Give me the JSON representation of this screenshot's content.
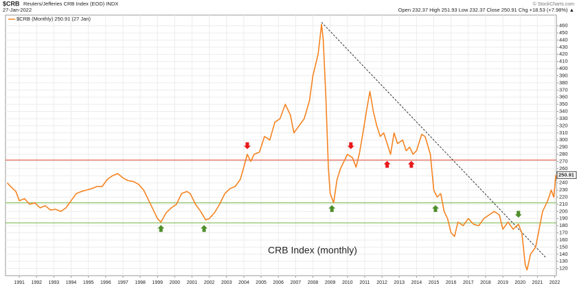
{
  "chart_data": {
    "type": "line",
    "symbol": "$CRB",
    "title": "Reuters/Jefferies CRB Index (EOD) INDX",
    "date": "27-Jan-2022",
    "stats": "Open 232.37  High 251.93  Low 232.37  Close 250.91  Chg +18.53 (+7.98%) ▲",
    "watermark": "© StockCharts.com",
    "annotation": "CRB Index (monthly)",
    "last_label": "250.91",
    "grid": true,
    "xlim": [
      1990.2,
      2022.1
    ],
    "ylim": [
      110,
      475
    ],
    "xticks": [
      1991,
      1992,
      1993,
      1994,
      1995,
      1996,
      1997,
      1998,
      1999,
      2000,
      2001,
      2002,
      2003,
      2004,
      2005,
      2006,
      2007,
      2008,
      2009,
      2010,
      2011,
      2012,
      2013,
      2014,
      2015,
      2016,
      2017,
      2018,
      2019,
      2020,
      2021,
      2022
    ],
    "yticks": [
      120,
      130,
      140,
      150,
      160,
      170,
      180,
      190,
      200,
      210,
      220,
      230,
      240,
      250,
      260,
      270,
      280,
      290,
      300,
      310,
      320,
      330,
      340,
      350,
      360,
      370,
      380,
      390,
      400,
      410,
      420,
      430,
      440,
      450,
      460
    ],
    "series": [
      {
        "name": "$CRB (Monthly) 250.91 (27 Jan)",
        "color": "#f5821f",
        "x": [
          1990.3,
          1990.5,
          1990.8,
          1991.0,
          1991.3,
          1991.6,
          1991.9,
          1992.2,
          1992.5,
          1992.8,
          1993.1,
          1993.4,
          1993.7,
          1994.0,
          1994.3,
          1994.6,
          1994.9,
          1995.2,
          1995.5,
          1995.8,
          1996.1,
          1996.4,
          1996.7,
          1997.0,
          1997.3,
          1997.6,
          1997.9,
          1998.2,
          1998.5,
          1998.8,
          1999.0,
          1999.2,
          1999.5,
          1999.8,
          2000.1,
          2000.4,
          2000.7,
          2000.9,
          2001.2,
          2001.5,
          2001.8,
          2002.0,
          2002.3,
          2002.6,
          2002.9,
          2003.2,
          2003.5,
          2003.8,
          2004.0,
          2004.2,
          2004.4,
          2004.6,
          2004.9,
          2005.2,
          2005.5,
          2005.8,
          2006.1,
          2006.4,
          2006.7,
          2006.9,
          2007.2,
          2007.5,
          2007.8,
          2008.0,
          2008.3,
          2008.5,
          2008.6,
          2008.75,
          2008.9,
          2009.0,
          2009.2,
          2009.4,
          2009.6,
          2009.8,
          2010.0,
          2010.3,
          2010.5,
          2010.7,
          2010.9,
          2011.1,
          2011.3,
          2011.5,
          2011.7,
          2011.9,
          2012.1,
          2012.3,
          2012.5,
          2012.7,
          2012.9,
          2013.2,
          2013.4,
          2013.6,
          2013.8,
          2014.0,
          2014.3,
          2014.5,
          2014.8,
          2015.0,
          2015.2,
          2015.4,
          2015.6,
          2015.8,
          2016.0,
          2016.2,
          2016.4,
          2016.7,
          2017.0,
          2017.3,
          2017.6,
          2017.9,
          2018.2,
          2018.5,
          2018.8,
          2019.0,
          2019.3,
          2019.6,
          2019.9,
          2020.1,
          2020.3,
          2020.4,
          2020.6,
          2020.9,
          2021.1,
          2021.3,
          2021.6,
          2021.8,
          2021.95,
          2022.07
        ],
        "values": [
          240,
          235,
          228,
          215,
          218,
          210,
          212,
          205,
          208,
          202,
          203,
          200,
          205,
          215,
          225,
          228,
          230,
          232,
          235,
          235,
          245,
          250,
          253,
          247,
          243,
          242,
          238,
          230,
          215,
          200,
          190,
          185,
          198,
          205,
          210,
          225,
          228,
          225,
          210,
          200,
          188,
          190,
          198,
          210,
          225,
          232,
          235,
          245,
          262,
          280,
          270,
          280,
          283,
          305,
          300,
          325,
          330,
          350,
          335,
          310,
          320,
          330,
          355,
          390,
          420,
          462,
          440,
          360,
          260,
          225,
          212,
          245,
          260,
          270,
          280,
          275,
          262,
          282,
          310,
          340,
          368,
          340,
          320,
          305,
          310,
          295,
          280,
          310,
          295,
          300,
          285,
          290,
          280,
          285,
          308,
          305,
          280,
          230,
          220,
          225,
          200,
          190,
          170,
          165,
          185,
          180,
          190,
          182,
          180,
          190,
          195,
          200,
          195,
          175,
          185,
          175,
          182,
          170,
          125,
          118,
          140,
          150,
          175,
          200,
          215,
          230,
          220,
          250.91
        ]
      }
    ],
    "hlines": [
      {
        "value": 272,
        "color": "#e0402a"
      },
      {
        "value": 212,
        "color": "#6cb33f"
      },
      {
        "value": 184,
        "color": "#6cb33f"
      }
    ],
    "trendline": {
      "x": [
        2008.5,
        2021.5
      ],
      "y": [
        465,
        135
      ],
      "color": "#333"
    },
    "arrows": [
      {
        "x": 2004.2,
        "y": 292,
        "direction": "down",
        "color": "#e8191c"
      },
      {
        "x": 2010.2,
        "y": 292,
        "direction": "down",
        "color": "#e8191c"
      },
      {
        "x": 2012.3,
        "y": 266,
        "direction": "up",
        "color": "#e8191c"
      },
      {
        "x": 2013.7,
        "y": 266,
        "direction": "up",
        "color": "#e8191c"
      },
      {
        "x": 1999.2,
        "y": 176,
        "direction": "up",
        "color": "#4e8f2a"
      },
      {
        "x": 2001.7,
        "y": 176,
        "direction": "up",
        "color": "#4e8f2a"
      },
      {
        "x": 2009.1,
        "y": 204,
        "direction": "up",
        "color": "#4e8f2a"
      },
      {
        "x": 2015.1,
        "y": 204,
        "direction": "up",
        "color": "#4e8f2a"
      },
      {
        "x": 2019.9,
        "y": 196,
        "direction": "down",
        "color": "#4e8f2a"
      }
    ]
  }
}
